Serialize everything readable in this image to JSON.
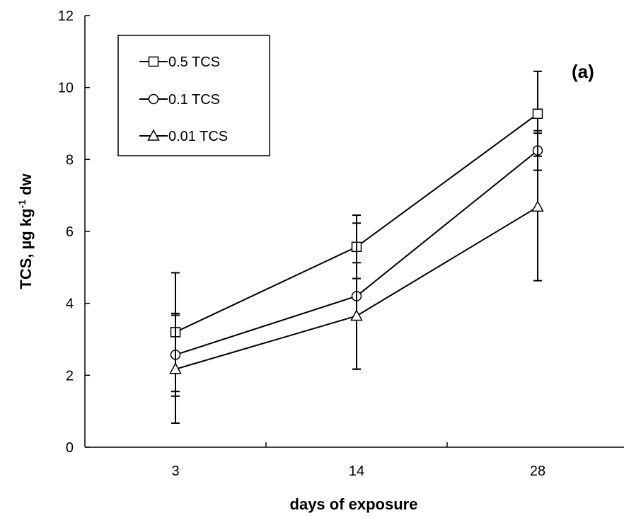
{
  "chart_data": {
    "type": "line",
    "title": "",
    "panel_label": "(a)",
    "xlabel": "days of exposure",
    "ylabel": {
      "prefix": "TCS, µg kg",
      "superscript": "-1",
      "suffix": " dw"
    },
    "categories": [
      "3",
      "14",
      "28"
    ],
    "ylim": [
      0,
      12
    ],
    "yticks": [
      "0",
      "2",
      "4",
      "6",
      "8",
      "10",
      "12"
    ],
    "grid": false,
    "legend_position": "top-left",
    "series": [
      {
        "name": "0.5 TCS",
        "marker": "square",
        "values": [
          3.2,
          5.57,
          9.27
        ],
        "error": [
          1.65,
          0.88,
          1.18
        ]
      },
      {
        "name": "0.1 TCS",
        "marker": "circle",
        "values": [
          2.57,
          4.2,
          8.25
        ],
        "error": [
          1.15,
          2.03,
          0.55
        ]
      },
      {
        "name": "0.01 TCS",
        "marker": "triangle",
        "values": [
          2.17,
          3.65,
          6.68
        ],
        "error": [
          1.5,
          1.48,
          2.05
        ]
      }
    ]
  }
}
